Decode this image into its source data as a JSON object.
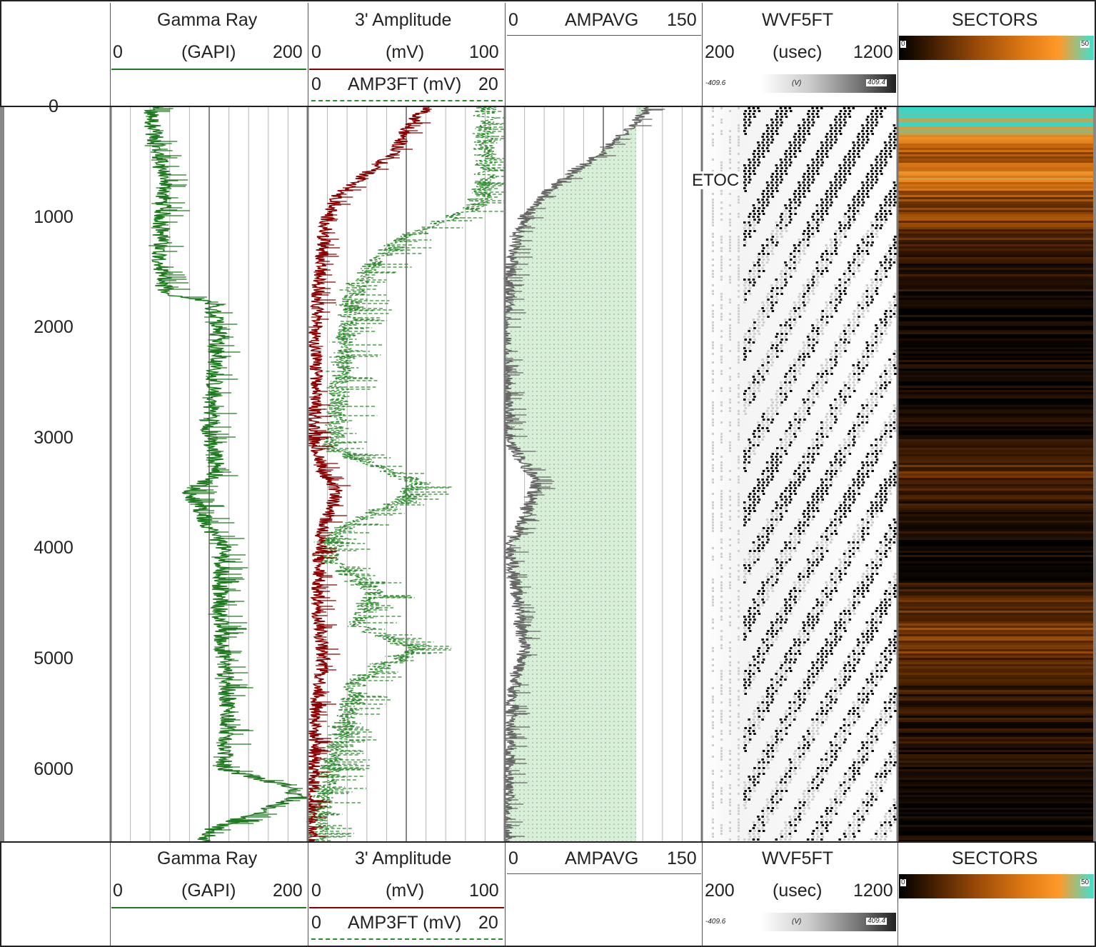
{
  "tracks": {
    "gamma": {
      "title": "Gamma Ray",
      "unit": "(GAPI)",
      "min": "0",
      "max": "200",
      "line_color": "#1e7a1e"
    },
    "amp": {
      "title": "3' Amplitude",
      "unit": "(mV)",
      "min": "0",
      "max": "100",
      "line_color": "#8b0000",
      "sub_label": "0",
      "sub_name": "AMP3FT (mV)",
      "sub_max": "20",
      "sub_color": "#2e8b2e"
    },
    "ampavg": {
      "name": "AMPAVG",
      "min": "0",
      "max": "150",
      "line_color": "#666666",
      "fill_color": "#d4ecd4"
    },
    "wvf": {
      "title": "WVF5FT",
      "unit": "(usec)",
      "min": "200",
      "max": "1200",
      "scale_min": "-409.6",
      "scale_unit": "(V)",
      "scale_max": "409.4"
    },
    "sectors": {
      "title": "SECTORS",
      "scale_min": "0",
      "scale_max": "50",
      "colors": [
        "#000000",
        "#c8650a",
        "#ff9a2a",
        "#40e0d0"
      ]
    }
  },
  "annotation": {
    "etoc": "ETOC"
  },
  "chart_data": {
    "type": "line",
    "depth_axis": {
      "min": 0,
      "max": 6650,
      "ticks": [
        "0",
        "1000",
        "2000",
        "3000",
        "4000",
        "5000",
        "6000"
      ]
    },
    "series": [
      {
        "name": "Gamma Ray",
        "depth": [
          0,
          300,
          700,
          1000,
          1300,
          1700,
          1760,
          2000,
          2500,
          3000,
          3300,
          3500,
          3800,
          4000,
          4500,
          5000,
          5500,
          6000,
          6150,
          6250,
          6350,
          6450,
          6550,
          6650
        ],
        "values": [
          40,
          45,
          55,
          52,
          50,
          55,
          100,
          110,
          105,
          100,
          110,
          80,
          100,
          115,
          110,
          115,
          120,
          115,
          180,
          190,
          160,
          130,
          100,
          95
        ]
      },
      {
        "name": "3' Amplitude",
        "depth": [
          0,
          200,
          400,
          600,
          800,
          1000,
          1200,
          1500,
          2000,
          2500,
          3000,
          3300,
          3500,
          3800,
          4000,
          4500,
          5000,
          5500,
          6000,
          6300,
          6500,
          6650
        ],
        "values": [
          60,
          50,
          45,
          30,
          15,
          10,
          8,
          6,
          4,
          4,
          3,
          8,
          15,
          8,
          6,
          5,
          8,
          4,
          3,
          2,
          2,
          1
        ]
      },
      {
        "name": "AMP3FT",
        "depth": [
          700,
          900,
          1100,
          1300,
          1600,
          2000,
          2300,
          2700,
          3100,
          3400,
          3550,
          3700,
          3900,
          4100,
          4400,
          4700,
          4900,
          5200,
          5500,
          5800,
          6100,
          6400,
          6650
        ],
        "values": [
          18,
          17,
          12,
          8,
          5,
          4,
          3.5,
          3,
          2.5,
          11,
          10,
          6,
          2.5,
          2,
          7,
          5,
          11,
          5,
          4,
          3,
          2,
          1,
          0.8
        ]
      },
      {
        "name": "AMPAVG",
        "depth": [
          0,
          200,
          400,
          600,
          800,
          1000,
          1200,
          1500,
          2000,
          2500,
          3000,
          3400,
          3550,
          3700,
          4000,
          4500,
          4700,
          4900,
          5200,
          5600,
          6000,
          6300,
          6650
        ],
        "values": [
          110,
          95,
          75,
          50,
          30,
          15,
          8,
          4,
          0,
          1,
          2,
          25,
          20,
          15,
          4,
          10,
          12,
          15,
          8,
          4,
          3,
          2,
          1
        ]
      },
      {
        "name": "SECTORS",
        "depth": [
          0,
          150,
          300,
          450,
          600,
          800,
          1000,
          1300,
          1600,
          2000,
          2500,
          3000,
          3300,
          3500,
          3800,
          4200,
          4500,
          4800,
          5200,
          5500,
          6000,
          6300,
          6650
        ],
        "values": [
          50,
          45,
          35,
          20,
          40,
          22,
          20,
          10,
          5,
          3,
          2,
          5,
          15,
          10,
          4,
          3,
          15,
          20,
          10,
          8,
          5,
          2,
          5
        ]
      }
    ]
  }
}
